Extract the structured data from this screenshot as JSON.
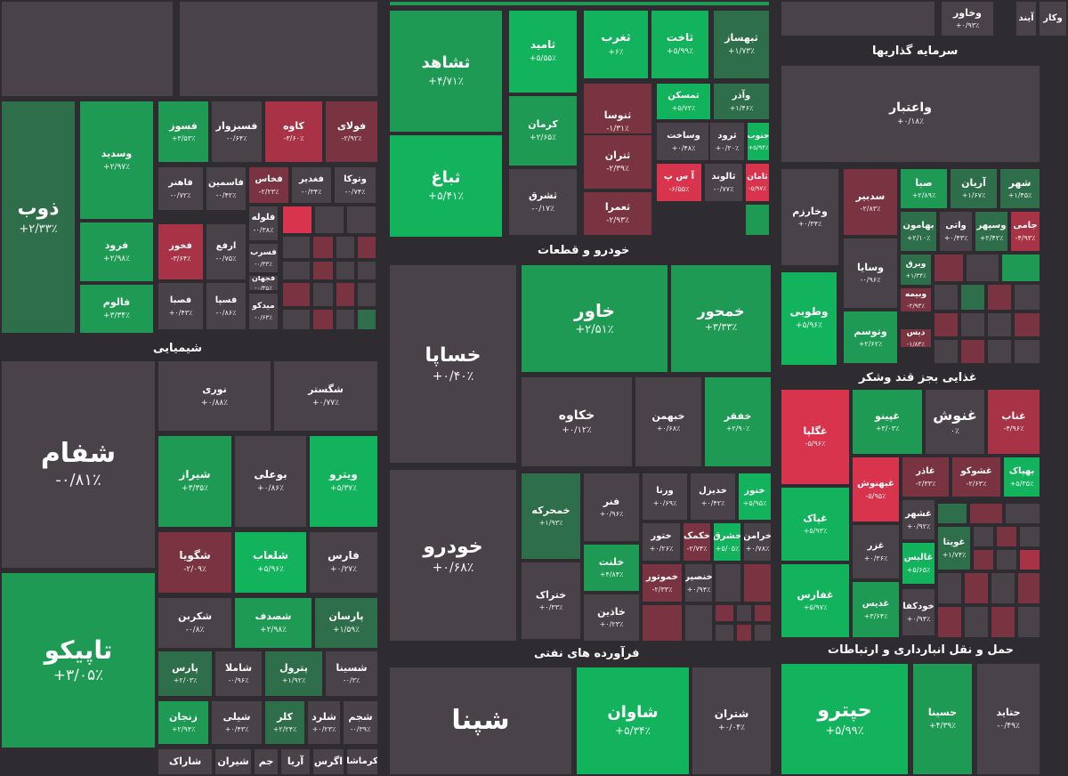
{
  "colors": {
    "background": "#2f2c31",
    "neutral": "#4a4249",
    "up_dark": "#2f6e4a",
    "up_mid": "#1f9a55",
    "up_bright": "#13b35e",
    "down_dark": "#7a3340",
    "down_mid": "#a83347",
    "down_bright": "#d9344e"
  },
  "sectors": [
    {
      "label": "شیمیایی"
    },
    {
      "label": "خودرو و قطعات"
    },
    {
      "label": "سرمایه گذاریها"
    },
    {
      "label": "غذایی بجز قند وشکر"
    },
    {
      "label": "فرآورده های نفتی"
    },
    {
      "label": "حمل و نقل انبارداری و ارتباطات"
    }
  ],
  "chart_data": {
    "type": "heatmap",
    "title": "",
    "cells": [
      {
        "symbol": "ذوب",
        "change": "+۲/۳۳٪",
        "value": 2.33
      },
      {
        "symbol": "وسدید",
        "change": "+۲/۹۷٪",
        "value": 2.97
      },
      {
        "symbol": "فرود",
        "change": "+۲/۹۸٪",
        "value": 2.98
      },
      {
        "symbol": "فالوم",
        "change": "+۳/۳۴٪",
        "value": 3.34
      },
      {
        "symbol": "فسوز",
        "change": "+۳/۵۳٪",
        "value": 3.53
      },
      {
        "symbol": "فسبزوار",
        "change": "-۰/۶۴٪",
        "value": -0.64
      },
      {
        "symbol": "کاوه",
        "change": "-۳/۶۰٪",
        "value": -3.6
      },
      {
        "symbol": "فولای",
        "change": "-۲/۹۲٪",
        "value": -2.92
      },
      {
        "symbol": "فخاس",
        "change": "-۲/۲۳٪",
        "value": -2.23
      },
      {
        "symbol": "فغدیر",
        "change": "-۰/۳۴٪",
        "value": -0.34
      },
      {
        "symbol": "وتوکا",
        "change": "-۰/۷۴٪",
        "value": -0.74
      },
      {
        "symbol": "فاهنر",
        "change": "-۰/۷۲٪",
        "value": -0.72
      },
      {
        "symbol": "فاسمین",
        "change": "-۰/۴۲٪",
        "value": -0.42
      },
      {
        "symbol": "فلوله",
        "change": "-۰/۳۸٪",
        "value": -0.38
      },
      {
        "symbol": "فخوز",
        "change": "-۳/۶۴٪",
        "value": -3.64
      },
      {
        "symbol": "ارفع",
        "change": "-۰/۷۵٪",
        "value": -0.75
      },
      {
        "symbol": "فسرب",
        "change": "-۰/۳۳٪",
        "value": -0.33
      },
      {
        "symbol": "فجهان",
        "change": "-۰/۳۵٪",
        "value": -0.35
      },
      {
        "symbol": "فصبا",
        "change": "+۰/۴۳٪",
        "value": 0.43
      },
      {
        "symbol": "فسپا",
        "change": "-۰/۸۶٪",
        "value": -0.86
      },
      {
        "symbol": "میدکو",
        "change": "-۰/۶۳٪",
        "value": -0.63
      },
      {
        "symbol": "ثباغ",
        "change": "+۵/۴۱٪",
        "value": 5.41
      },
      {
        "symbol": "ثشاهد",
        "change": "+۴/۷۱٪",
        "value": 4.71
      },
      {
        "symbol": "ثامید",
        "change": "+۵/۵۵٪",
        "value": 5.55
      },
      {
        "symbol": "ثغرب",
        "change": "+۶٪",
        "value": 6
      },
      {
        "symbol": "ثاخت",
        "change": "+۵/۹۹٪",
        "value": 5.99
      },
      {
        "symbol": "ثبهساز",
        "change": "+۱/۷۳٪",
        "value": 1.73
      },
      {
        "symbol": "کرمان",
        "change": "+۲/۶۵٪",
        "value": 2.65
      },
      {
        "symbol": "ثنوسا",
        "change": "-۱/۳۱٪",
        "value": -1.31
      },
      {
        "symbol": "تمسکن",
        "change": "+۵/۷۲٪",
        "value": 5.72
      },
      {
        "symbol": "وآذر",
        "change": "+۱/۴۶٪",
        "value": 1.46
      },
      {
        "symbol": "وساخت",
        "change": "+۰/۴۸٪",
        "value": 0.48
      },
      {
        "symbol": "ثرود",
        "change": "+۰/۲۰٪",
        "value": 0.2
      },
      {
        "symbol": "جنوب",
        "change": "+۵/۹۴٪",
        "value": 5.94
      },
      {
        "symbol": "ثتران",
        "change": "-۲/۳۹٪",
        "value": -2.39
      },
      {
        "symbol": "آ س پ",
        "change": "-۶/۵۵٪",
        "value": -6.55
      },
      {
        "symbol": "ثالوند",
        "change": "-۰/۷۷٪",
        "value": -0.77
      },
      {
        "symbol": "ثامان",
        "change": "-۵/۹۷٪",
        "value": -5.97
      },
      {
        "symbol": "ثشرق",
        "change": "-۰/۱۷٪",
        "value": -0.17
      },
      {
        "symbol": "ثعمرا",
        "change": "-۲/۹۳٪",
        "value": -2.93
      },
      {
        "symbol": "واعتبار",
        "change": "+۰/۱۸٪",
        "value": 0.18
      },
      {
        "symbol": "وخارزم",
        "change": "+۰/۳۴٪",
        "value": 0.34
      },
      {
        "symbol": "سدبیر",
        "change": "-۲/۸۳٪",
        "value": -2.83
      },
      {
        "symbol": "صبا",
        "change": "+۲/۸۹٪",
        "value": 2.89
      },
      {
        "symbol": "آریان",
        "change": "+۱/۶۷٪",
        "value": 1.67
      },
      {
        "symbol": "شهر",
        "change": "+۱/۴۵٪",
        "value": 1.45
      },
      {
        "symbol": "بهامون",
        "change": "+۲/۱۰٪",
        "value": 2.1
      },
      {
        "symbol": "واتی",
        "change": "+۰/۴۳٪",
        "value": 0.43
      },
      {
        "symbol": "وسپهر",
        "change": "+۲/۴۲٪",
        "value": 2.42
      },
      {
        "symbol": "جامی",
        "change": "-۴/۹۳٪",
        "value": -4.93
      },
      {
        "symbol": "وسایا",
        "change": "-۰/۹۶٪",
        "value": -0.96
      },
      {
        "symbol": "وبرق",
        "change": "+۱/۳۴٪",
        "value": 1.34
      },
      {
        "symbol": "وطوبی",
        "change": "+۵/۹۶٪",
        "value": 5.96
      },
      {
        "symbol": "وبیمه",
        "change": "-۲/۹۳٪",
        "value": -2.93
      },
      {
        "symbol": "وتوسم",
        "change": "+۲/۶۲٪",
        "value": 2.62
      },
      {
        "symbol": "دیس",
        "change": "-۱/۸۳٪",
        "value": -1.83
      },
      {
        "symbol": "شفام",
        "change": "-۰/۸۱٪",
        "value": -0.81
      },
      {
        "symbol": "نوری",
        "change": "+۰/۸۸٪",
        "value": 0.88
      },
      {
        "symbol": "شگستر",
        "change": "+۰/۷۷٪",
        "value": 0.77
      },
      {
        "symbol": "شیراز",
        "change": "+۳/۳۵٪",
        "value": 3.35
      },
      {
        "symbol": "بوعلی",
        "change": "+۰/۸۶٪",
        "value": 0.86
      },
      {
        "symbol": "ویترو",
        "change": "+۵/۳۷٪",
        "value": 5.37
      },
      {
        "symbol": "شگویا",
        "change": "-۲/۰۹٪",
        "value": -2.09
      },
      {
        "symbol": "شلعاب",
        "change": "+۵/۹۶٪",
        "value": 5.96
      },
      {
        "symbol": "فارس",
        "change": "+۰/۲۷٪",
        "value": 0.27
      },
      {
        "symbol": "شکربن",
        "change": "-۰/۸٪",
        "value": -0.8
      },
      {
        "symbol": "شصدف",
        "change": "+۲/۹۸٪",
        "value": 2.98
      },
      {
        "symbol": "پارسان",
        "change": "+۱/۵۹٪",
        "value": 1.59
      },
      {
        "symbol": "تاپیکو",
        "change": "+۳/۰۵٪",
        "value": 3.05
      },
      {
        "symbol": "پارس",
        "change": "+۲/۰۳٪",
        "value": 2.03
      },
      {
        "symbol": "شاملا",
        "change": "-۰/۹۶٪",
        "value": -0.96
      },
      {
        "symbol": "پترول",
        "change": "+۱/۹۲٪",
        "value": 1.92
      },
      {
        "symbol": "شسینا",
        "change": "-۰/۳٪",
        "value": -0.3
      },
      {
        "symbol": "زنجان",
        "change": "+۲/۹۴٪",
        "value": 2.94
      },
      {
        "symbol": "شیلی",
        "change": "+۰/۴۳٪",
        "value": 0.43
      },
      {
        "symbol": "کلر",
        "change": "+۲/۲۴٪",
        "value": 2.24
      },
      {
        "symbol": "شلرد",
        "change": "+۰/۲۳٪",
        "value": 0.23
      },
      {
        "symbol": "شجم",
        "change": "-۰/۳۹٪",
        "value": -0.39
      },
      {
        "symbol": "شاراک",
        "change": "",
        "value": null
      },
      {
        "symbol": "شیران",
        "change": "",
        "value": null
      },
      {
        "symbol": "جم",
        "change": "",
        "value": null
      },
      {
        "symbol": "آریا",
        "change": "",
        "value": null
      },
      {
        "symbol": "اگرس",
        "change": "",
        "value": null
      },
      {
        "symbol": "کرماشا",
        "change": "",
        "value": null
      },
      {
        "symbol": "خساپا",
        "change": "+۰/۴۰٪",
        "value": 0.4
      },
      {
        "symbol": "خاور",
        "change": "+۲/۵۱٪",
        "value": 2.51
      },
      {
        "symbol": "خمحور",
        "change": "+۳/۳۳٪",
        "value": 3.33
      },
      {
        "symbol": "خکاوه",
        "change": "+۰/۱۲٪",
        "value": 0.12
      },
      {
        "symbol": "خبهمن",
        "change": "+۰/۶۸٪",
        "value": 0.68
      },
      {
        "symbol": "خفقر",
        "change": "+۲/۹۰٪",
        "value": 2.9
      },
      {
        "symbol": "خودرو",
        "change": "+۰/۶۸٪",
        "value": 0.68
      },
      {
        "symbol": "خمحرکه",
        "change": "+۱/۹۳٪",
        "value": 1.93
      },
      {
        "symbol": "فنر",
        "change": "+۰/۹۶٪",
        "value": 0.96
      },
      {
        "symbol": "ورنا",
        "change": "+۰/۶۹٪",
        "value": 0.69
      },
      {
        "symbol": "خدیزل",
        "change": "+۰/۴۲٪",
        "value": 0.42
      },
      {
        "symbol": "خنور",
        "change": "+۵/۹۵٪",
        "value": 5.95
      },
      {
        "symbol": "ختور",
        "change": "+۰/۲۶٪",
        "value": 0.26
      },
      {
        "symbol": "خکمک",
        "change": "-۲/۷۴٪",
        "value": -2.74
      },
      {
        "symbol": "خشرق",
        "change": "+۵/۰۵٪",
        "value": 5.05
      },
      {
        "symbol": "خرامن",
        "change": "+۰/۷۸٪",
        "value": 0.78
      },
      {
        "symbol": "خلنت",
        "change": "+۴/۸۴٪",
        "value": 4.84
      },
      {
        "symbol": "خموتور",
        "change": "-۲/۳۳٪",
        "value": -2.33
      },
      {
        "symbol": "خنصیر",
        "change": "+۰/۹۴٪",
        "value": 0.94
      },
      {
        "symbol": "ختراک",
        "change": "+۰/۳۳٪",
        "value": 0.33
      },
      {
        "symbol": "خاذین",
        "change": "+۰/۲۳٪",
        "value": 0.23
      },
      {
        "symbol": "شپنا",
        "change": "",
        "value": null
      },
      {
        "symbol": "شاوان",
        "change": "+۵/۳۴٪",
        "value": 5.34
      },
      {
        "symbol": "شتران",
        "change": "+۰/۰۴٪",
        "value": 0.04
      },
      {
        "symbol": "غگلپا",
        "change": "-۵/۹۶٪",
        "value": -5.96
      },
      {
        "symbol": "غپینو",
        "change": "+۳/۰۳٪",
        "value": 3.03
      },
      {
        "symbol": "غنوش",
        "change": "۰٪",
        "value": 0
      },
      {
        "symbol": "غناب",
        "change": "-۴/۹۶٪",
        "value": -4.96
      },
      {
        "symbol": "غبهنوش",
        "change": "-۵/۹۵٪",
        "value": -5.95
      },
      {
        "symbol": "غاذر",
        "change": "-۲/۳۳٪",
        "value": -2.33
      },
      {
        "symbol": "غشوکو",
        "change": "-۲/۶۳٪",
        "value": -2.63
      },
      {
        "symbol": "بهپاک",
        "change": "+۵/۳۵٪",
        "value": 5.35
      },
      {
        "symbol": "غپاک",
        "change": "+۵/۹۳٪",
        "value": 5.93
      },
      {
        "symbol": "غشهر",
        "change": "+۰/۹۲٪",
        "value": 0.92
      },
      {
        "symbol": "غزر",
        "change": "+۰/۳۶٪",
        "value": 0.36
      },
      {
        "symbol": "غالبس",
        "change": "+۵/۶۵٪",
        "value": 5.65
      },
      {
        "symbol": "غویتا",
        "change": "+۱/۷۴٪",
        "value": 1.74
      },
      {
        "symbol": "غفارس",
        "change": "+۵/۹۷٪",
        "value": 5.97
      },
      {
        "symbol": "غدیس",
        "change": "+۳/۶۴٪",
        "value": 3.64
      },
      {
        "symbol": "خودکفا",
        "change": "+۰/۹۴٪",
        "value": 0.94
      },
      {
        "symbol": "حپترو",
        "change": "+۵/۹۹٪",
        "value": 5.99
      },
      {
        "symbol": "حسینا",
        "change": "+۴/۳۹٪",
        "value": 4.39
      },
      {
        "symbol": "حتاید",
        "change": "-۰/۴۹٪",
        "value": -0.49
      },
      {
        "symbol": "وخاور",
        "change": "+۰/۹۳٪",
        "value": 0.93
      },
      {
        "symbol": "آیند",
        "change": "",
        "value": null
      },
      {
        "symbol": "وکار",
        "change": "",
        "value": null
      }
    ]
  }
}
